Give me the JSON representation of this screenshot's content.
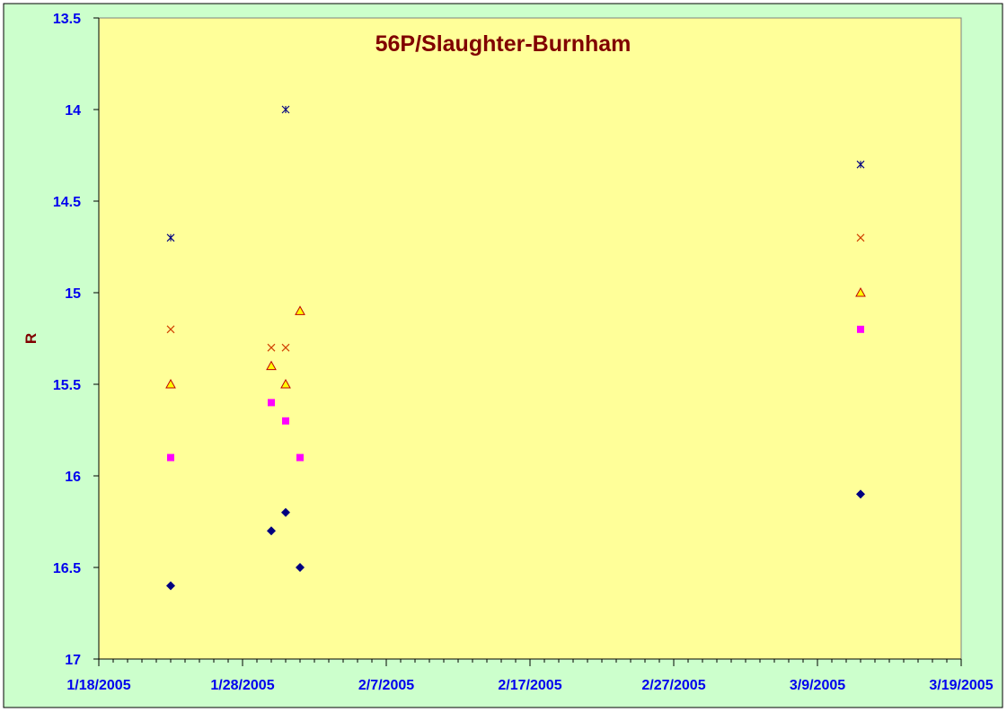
{
  "chart_data": {
    "type": "scatter",
    "title": "56P/Slaughter-Burnham",
    "ylabel": "R",
    "xlabel": "",
    "x_ticks": [
      "1/18/2005",
      "1/28/2005",
      "2/7/2005",
      "2/17/2005",
      "2/27/2005",
      "3/9/2005",
      "3/19/2005"
    ],
    "y_ticks": [
      "13.5",
      "14",
      "14.5",
      "15",
      "15.5",
      "16",
      "16.5",
      "17"
    ],
    "xlim": [
      "2005-01-18",
      "2005-03-19"
    ],
    "ylim": [
      13.5,
      17
    ],
    "y_reversed": true,
    "grid": false,
    "legend": "none",
    "series": [
      {
        "marker": "diamond",
        "color": "#000080",
        "points": [
          {
            "x": "2005-01-23",
            "y": 16.6
          },
          {
            "x": "2005-01-30",
            "y": 16.3
          },
          {
            "x": "2005-01-31",
            "y": 16.2
          },
          {
            "x": "2005-02-01",
            "y": 16.5
          },
          {
            "x": "2005-03-12",
            "y": 16.1
          }
        ]
      },
      {
        "marker": "square",
        "color": "#ff00ff",
        "points": [
          {
            "x": "2005-01-23",
            "y": 15.9
          },
          {
            "x": "2005-01-30",
            "y": 15.6
          },
          {
            "x": "2005-01-31",
            "y": 15.7
          },
          {
            "x": "2005-02-01",
            "y": 15.9
          },
          {
            "x": "2005-03-12",
            "y": 15.2
          }
        ]
      },
      {
        "marker": "triangle",
        "color": "#c00000",
        "fill": "#ffff00",
        "points": [
          {
            "x": "2005-01-23",
            "y": 15.5
          },
          {
            "x": "2005-01-30",
            "y": 15.4
          },
          {
            "x": "2005-01-31",
            "y": 15.5
          },
          {
            "x": "2005-02-01",
            "y": 15.1
          },
          {
            "x": "2005-03-12",
            "y": 15.0
          }
        ]
      },
      {
        "marker": "x",
        "color": "#d04000",
        "points": [
          {
            "x": "2005-01-23",
            "y": 15.2
          },
          {
            "x": "2005-01-30",
            "y": 15.3
          },
          {
            "x": "2005-01-31",
            "y": 15.3
          },
          {
            "x": "2005-03-12",
            "y": 14.7
          }
        ]
      },
      {
        "marker": "star",
        "color": "#000080",
        "points": [
          {
            "x": "2005-01-23",
            "y": 14.7
          },
          {
            "x": "2005-01-31",
            "y": 14.0
          },
          {
            "x": "2005-03-12",
            "y": 14.3
          }
        ]
      }
    ],
    "colors": {
      "outer_background": "#ccffcc",
      "plot_background": "#ffff99",
      "axis": "#000000",
      "tick_labels": "#0000ee",
      "title": "#800000"
    }
  }
}
